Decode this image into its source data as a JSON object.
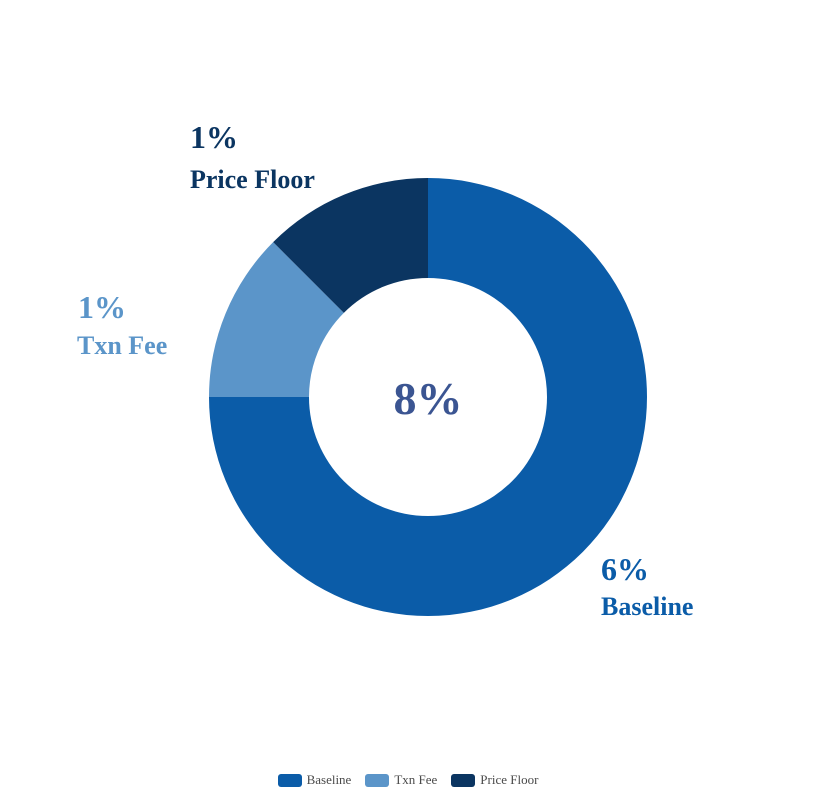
{
  "chart_data": {
    "type": "pie",
    "variant": "donut",
    "center_label": "8%",
    "slices": [
      {
        "name": "Baseline",
        "value": 6,
        "label": "6%",
        "color": "#0b5ca8"
      },
      {
        "name": "Txn Fee",
        "value": 1,
        "label": "1%",
        "color": "#5b95c9"
      },
      {
        "name": "Price Floor",
        "value": 1,
        "label": "1%",
        "color": "#0b3561"
      }
    ],
    "legend_position": "bottom-center",
    "center_label_color": "#3b5592"
  }
}
